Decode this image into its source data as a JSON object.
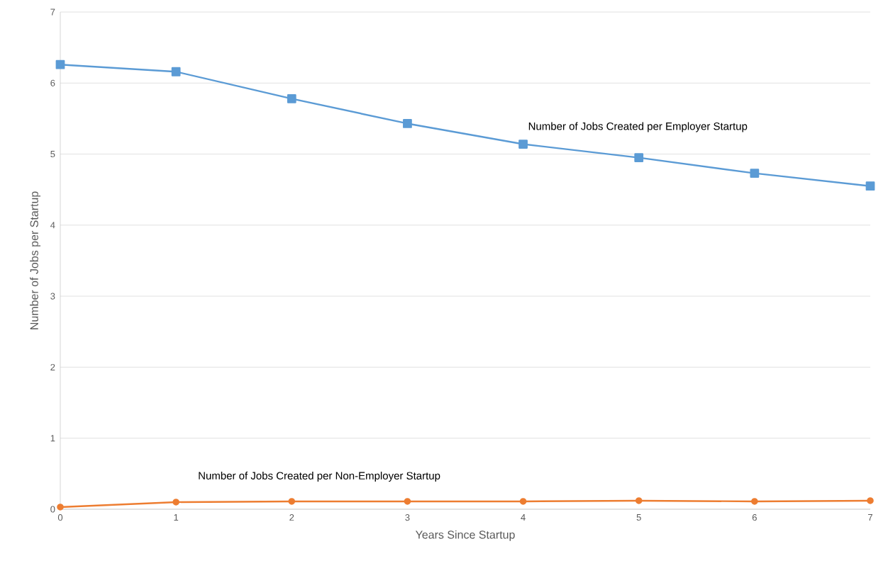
{
  "chart_data": {
    "type": "line",
    "xlabel": "Years Since Startup",
    "ylabel": "Number of Jobs per Startup",
    "x": [
      0,
      1,
      2,
      3,
      4,
      5,
      6,
      7
    ],
    "series": [
      {
        "name": "Number of Jobs Created per Employer Startup",
        "color": "#5b9bd5",
        "marker": "square",
        "values": [
          6.26,
          6.16,
          5.78,
          5.43,
          5.14,
          4.95,
          4.73,
          4.55
        ]
      },
      {
        "name": "Number of Jobs Created per Non-Employer Startup",
        "color": "#ed7d31",
        "marker": "circle",
        "values": [
          0.03,
          0.1,
          0.11,
          0.11,
          0.11,
          0.12,
          0.11,
          0.12
        ]
      }
    ],
    "xlim": [
      0,
      7
    ],
    "xticks": [
      0,
      1,
      2,
      3,
      4,
      5,
      6,
      7
    ],
    "ylim": [
      0,
      7
    ],
    "yticks": [
      0,
      1,
      2,
      3,
      4,
      5,
      6,
      7
    ],
    "grid": "y"
  }
}
